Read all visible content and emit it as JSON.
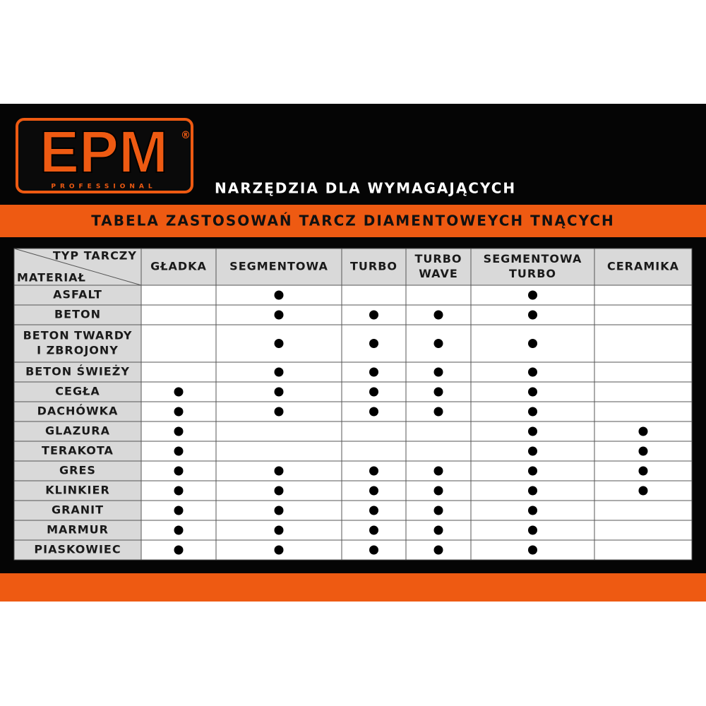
{
  "logo": {
    "brand": "EPM",
    "registered": "®",
    "tagline": "PROFESSIONAL"
  },
  "slogan": "NARZĘDZIA DLA WYMAGAJĄCYCH",
  "banner": "TABELA ZASTOSOWAŃ TARCZ DIAMENTOWEYCH TNĄCYCH",
  "table": {
    "corner": {
      "top": "TYP TARCZY",
      "bottom": "MATERIAŁ"
    },
    "columns": [
      [
        "GŁADKA"
      ],
      [
        "SEGMENTOWA"
      ],
      [
        "TURBO"
      ],
      [
        "TURBO",
        "WAVE"
      ],
      [
        "SEGMENTOWA",
        "TURBO"
      ],
      [
        "CERAMIKA"
      ]
    ],
    "rows": [
      {
        "material": [
          "ASFALT"
        ],
        "marks": [
          false,
          true,
          false,
          false,
          true,
          false
        ]
      },
      {
        "material": [
          "BETON"
        ],
        "marks": [
          false,
          true,
          true,
          true,
          true,
          false
        ]
      },
      {
        "material": [
          "BETON TWARDY",
          "I ZBROJONY"
        ],
        "marks": [
          false,
          true,
          true,
          true,
          true,
          false
        ]
      },
      {
        "material": [
          "BETON ŚWIEŻY"
        ],
        "marks": [
          false,
          true,
          true,
          true,
          true,
          false
        ]
      },
      {
        "material": [
          "CEGŁA"
        ],
        "marks": [
          true,
          true,
          true,
          true,
          true,
          false
        ]
      },
      {
        "material": [
          "DACHÓWKA"
        ],
        "marks": [
          true,
          true,
          true,
          true,
          true,
          false
        ]
      },
      {
        "material": [
          "GLAZURA"
        ],
        "marks": [
          true,
          false,
          false,
          false,
          true,
          true
        ]
      },
      {
        "material": [
          "TERAKOTA"
        ],
        "marks": [
          true,
          false,
          false,
          false,
          true,
          true
        ]
      },
      {
        "material": [
          "GRES"
        ],
        "marks": [
          true,
          true,
          true,
          true,
          true,
          true
        ]
      },
      {
        "material": [
          "KLINKIER"
        ],
        "marks": [
          true,
          true,
          true,
          true,
          true,
          true
        ]
      },
      {
        "material": [
          "GRANIT"
        ],
        "marks": [
          true,
          true,
          true,
          true,
          true,
          false
        ]
      },
      {
        "material": [
          "MARMUR"
        ],
        "marks": [
          true,
          true,
          true,
          true,
          true,
          false
        ]
      },
      {
        "material": [
          "PIASKOWIEC"
        ],
        "marks": [
          true,
          true,
          true,
          true,
          true,
          false
        ]
      }
    ]
  }
}
